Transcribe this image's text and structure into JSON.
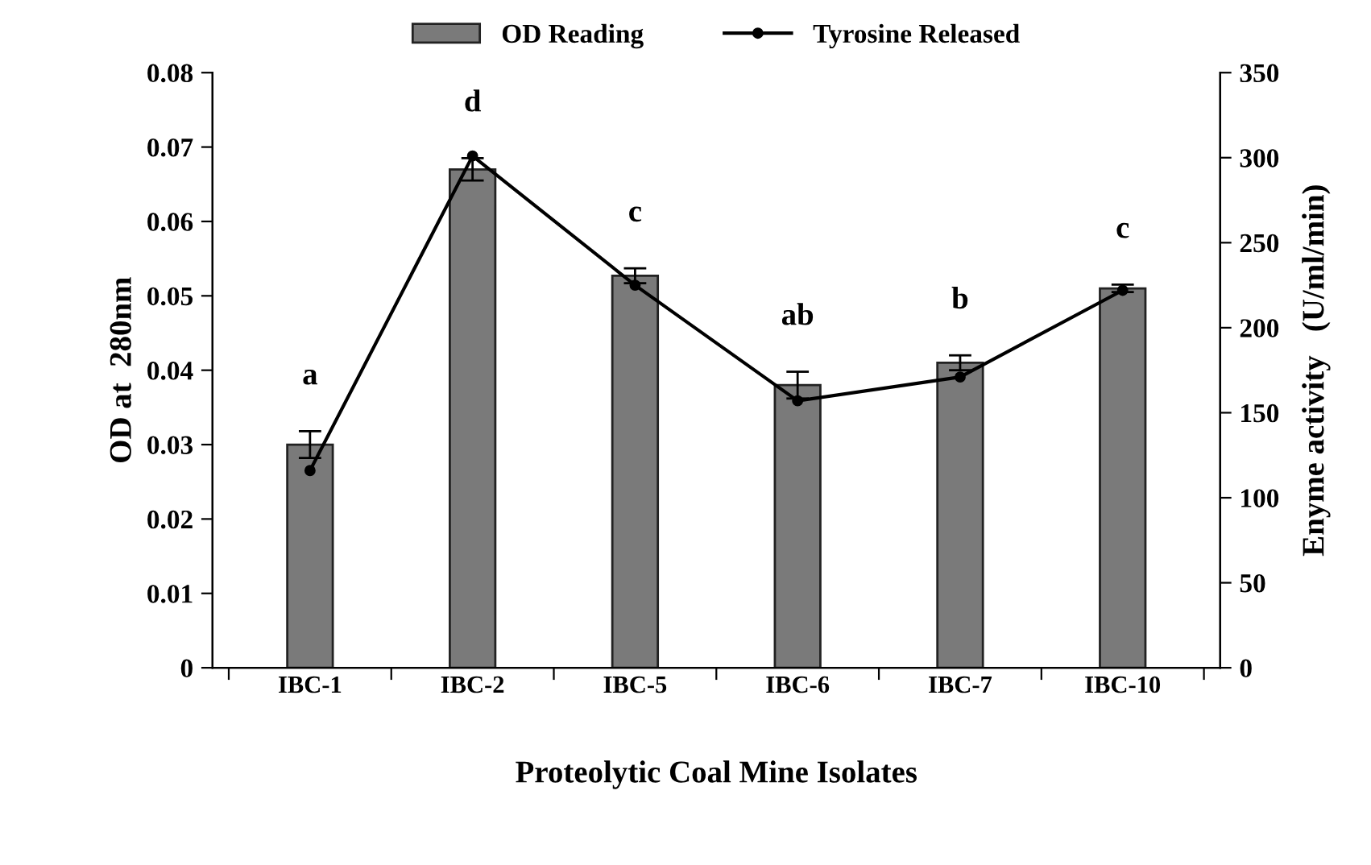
{
  "chart_data": {
    "type": "bar",
    "xlabel": "Proteolytic Coal Mine Isolates",
    "ylabel": "OD at  280nm",
    "y2label": "Enyme activity   (U/ml/min)",
    "categories": [
      "IBC-1",
      "IBC-2",
      "IBC-5",
      "IBC-6",
      "IBC-7",
      "IBC-10"
    ],
    "series": [
      {
        "name": "OD Reading",
        "color": "#7a7a7a",
        "values": [
          0.03,
          0.067,
          0.0527,
          0.038,
          0.041,
          0.051
        ],
        "errors": [
          0.0018,
          0.0015,
          0.001,
          0.0018,
          0.001,
          0.0005
        ]
      },
      {
        "name": "Tyrosine Released",
        "type": "line",
        "axis": "y2",
        "color": "#000000",
        "marker": "circle",
        "values": [
          116,
          301,
          225,
          157,
          171,
          222
        ]
      }
    ],
    "ylim": [
      0,
      0.08
    ],
    "yticks": [
      0,
      0.01,
      0.02,
      0.03,
      0.04,
      0.05,
      0.06,
      0.07,
      0.08
    ],
    "y2lim": [
      0,
      350
    ],
    "y2ticks": [
      0,
      50,
      100,
      150,
      200,
      250,
      300,
      350
    ],
    "annotations": [
      "a",
      "d",
      "c",
      "ab",
      "b",
      "c"
    ],
    "legend": "top",
    "grid": false
  }
}
